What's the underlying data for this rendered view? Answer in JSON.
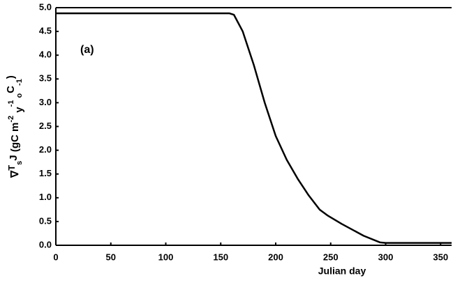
{
  "chart_data": {
    "type": "line",
    "annotation": "(a)",
    "xlabel": "Julian day",
    "ylabel": [
      "∇",
      "T",
      "s",
      "J",
      "  (gC  m",
      "-2",
      " y",
      "-1",
      " o",
      "C",
      "-1",
      ")"
    ],
    "x": [
      0,
      158,
      162,
      170,
      180,
      190,
      200,
      210,
      220,
      230,
      240,
      247,
      260,
      280,
      295,
      300,
      360
    ],
    "series": [
      {
        "color": "#000000",
        "values": [
          4.88,
          4.88,
          4.85,
          4.5,
          3.8,
          3.0,
          2.3,
          1.8,
          1.4,
          1.05,
          0.75,
          0.63,
          0.45,
          0.2,
          0.06,
          0.05,
          0.05
        ]
      }
    ],
    "xlim": [
      0,
      360
    ],
    "ylim": [
      0,
      5
    ],
    "xticks": [
      0,
      50,
      100,
      150,
      200,
      250,
      300,
      350
    ],
    "yticks": [
      {
        "value": 0,
        "label": "0.0"
      },
      0.5,
      {
        "value": 1,
        "label": "1.0"
      },
      1.5,
      {
        "value": 2,
        "label": "2.0"
      },
      2.5,
      {
        "value": 3,
        "label": "3.0"
      },
      3.5,
      {
        "value": 4,
        "label": "4.0"
      },
      4.5,
      {
        "value": 5,
        "label": "5.0"
      }
    ]
  }
}
